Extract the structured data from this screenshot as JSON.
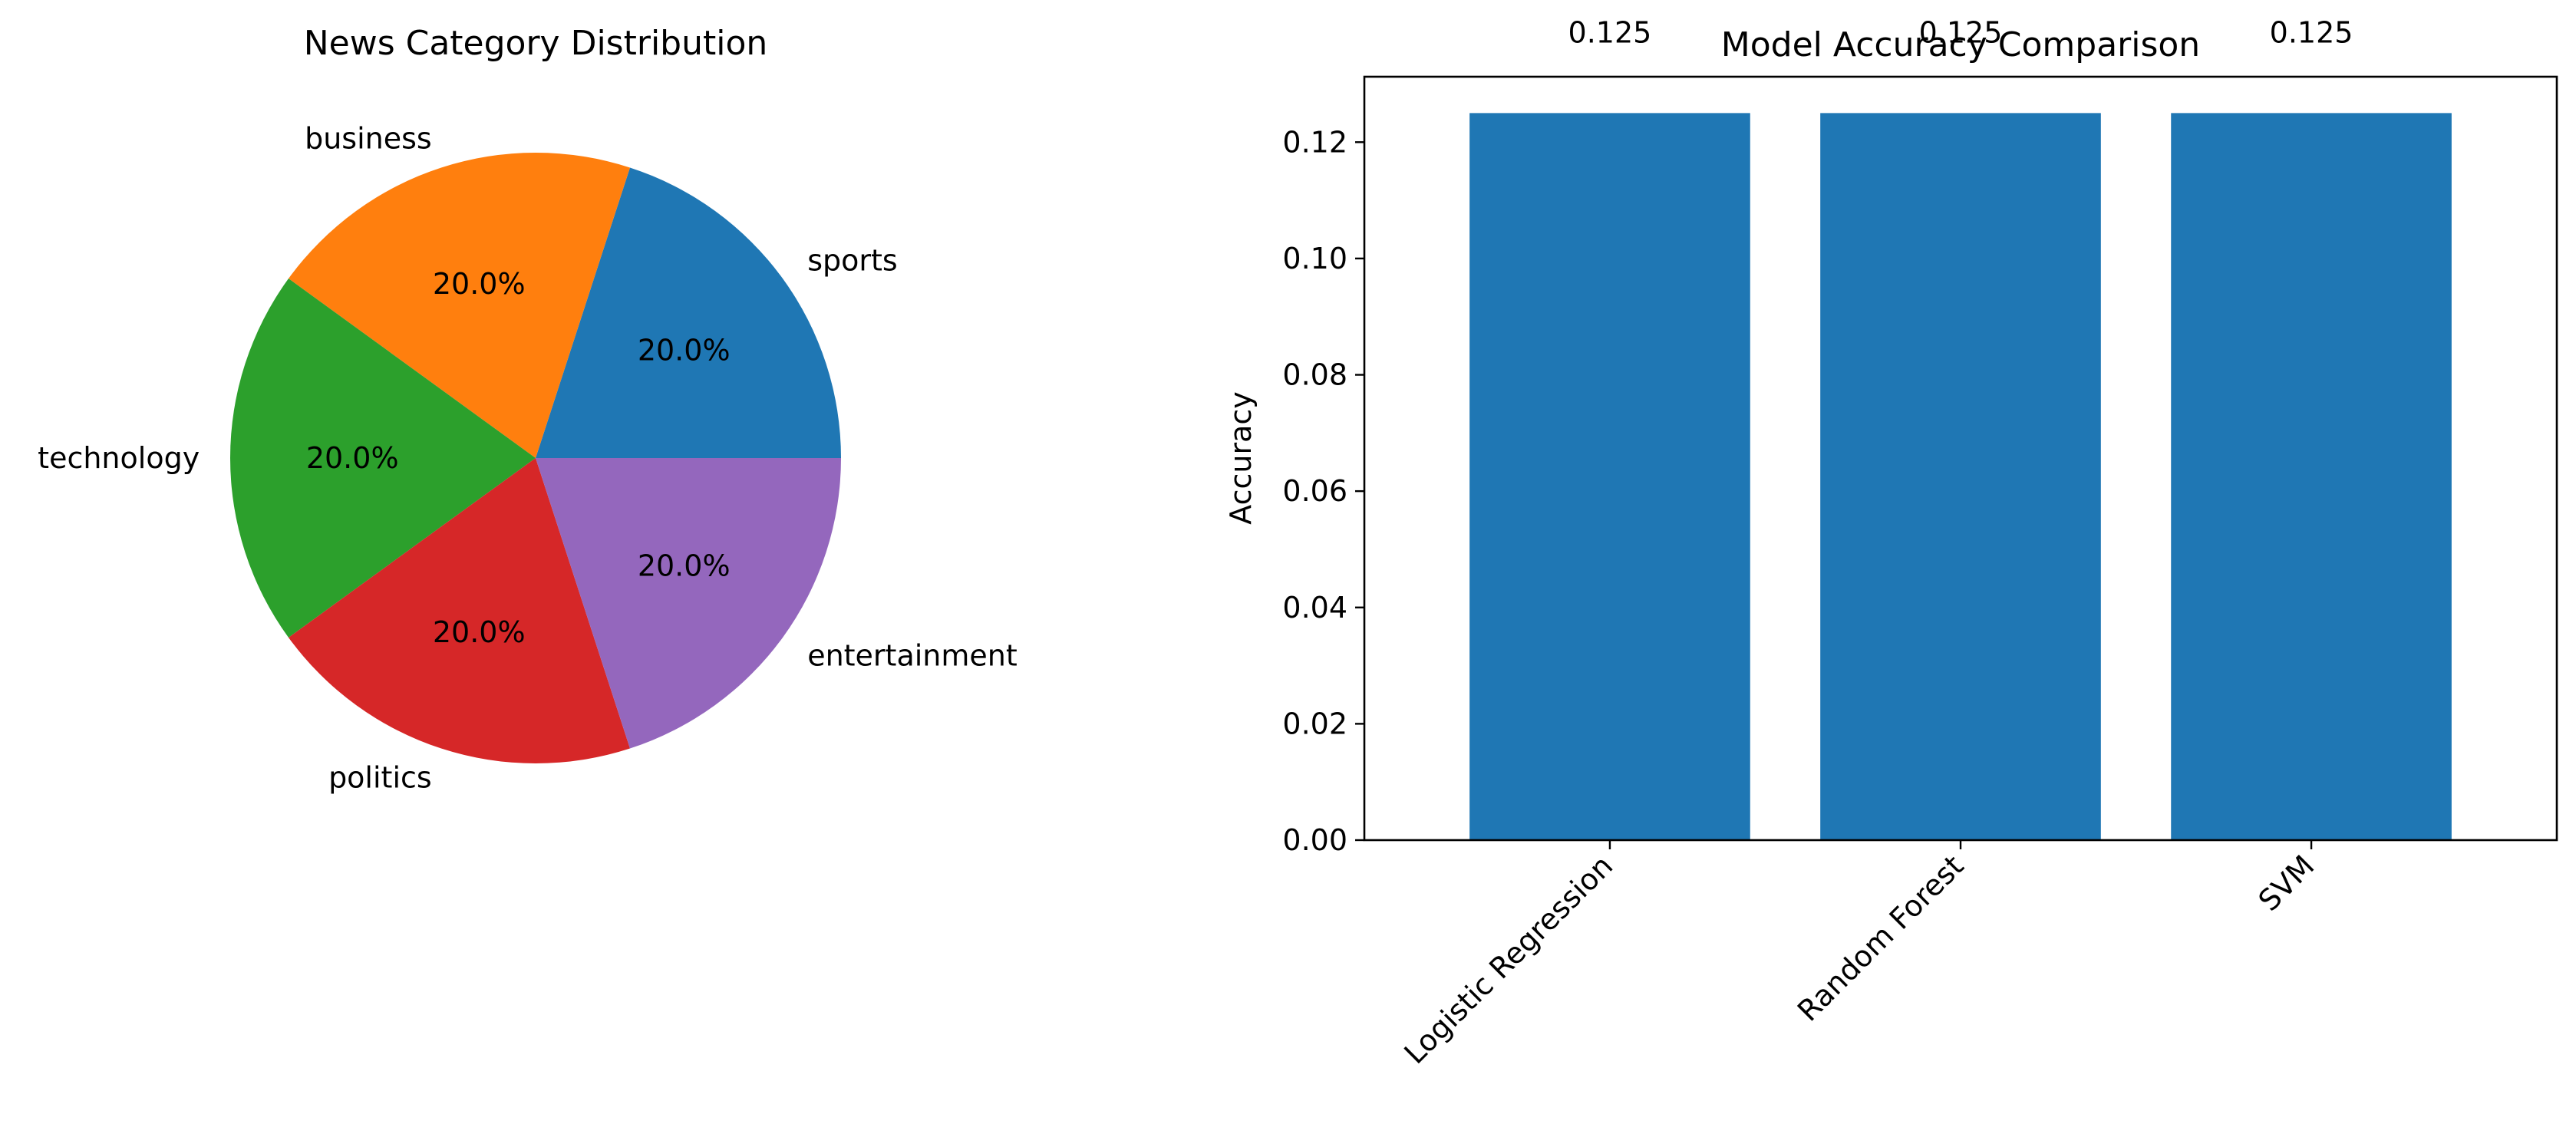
{
  "chart_data": [
    {
      "type": "pie",
      "title": "News Category Distribution",
      "labels": [
        "sports",
        "business",
        "technology",
        "politics",
        "entertainment"
      ],
      "values": [
        20,
        20,
        20,
        20,
        20
      ],
      "autopct": [
        "20.0%",
        "20.0%",
        "20.0%",
        "20.0%",
        "20.0%"
      ],
      "colors": [
        "#1f77b4",
        "#ff7f0e",
        "#2ca02c",
        "#d62728",
        "#9467bd"
      ],
      "start_angle_deg": 0,
      "direction": "counterclockwise"
    },
    {
      "type": "bar",
      "title": "Model Accuracy Comparison",
      "categories": [
        "Logistic Regression",
        "Random Forest",
        "SVM"
      ],
      "values": [
        0.125,
        0.125,
        0.125
      ],
      "data_labels": [
        "0.125",
        "0.125",
        "0.125"
      ],
      "xlabel": "",
      "ylabel": "Accuracy",
      "ylim": [
        0,
        0.13125
      ],
      "yticks": [
        "0.00",
        "0.02",
        "0.04",
        "0.06",
        "0.08",
        "0.10",
        "0.12"
      ],
      "ytick_values": [
        0,
        0.02,
        0.04,
        0.06,
        0.08,
        0.1,
        0.12
      ],
      "xtick_rotation_deg": 45,
      "bar_color": "#1f77b4",
      "grid": false
    }
  ]
}
